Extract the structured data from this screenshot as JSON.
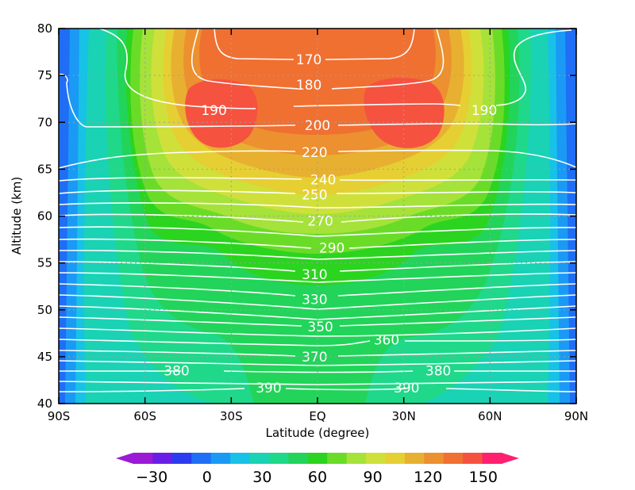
{
  "chart_data": {
    "type": "heatmap",
    "title": "",
    "xlabel": "Latitude (degree)",
    "ylabel": "Altitude (km)",
    "xlim": [
      -90,
      90
    ],
    "ylim": [
      40,
      80
    ],
    "x_ticks": [
      -90,
      -60,
      -30,
      0,
      30,
      60,
      90
    ],
    "x_tick_labels": [
      "90S",
      "60S",
      "30S",
      "EQ",
      "30N",
      "60N",
      "90N"
    ],
    "y_ticks": [
      40,
      45,
      50,
      55,
      60,
      65,
      70,
      75,
      80
    ],
    "y_tick_labels": [
      "40",
      "45",
      "50",
      "55",
      "60",
      "65",
      "70",
      "75",
      "80"
    ],
    "grid": "dotted",
    "shaded_field": {
      "description_levels": "filled contours",
      "colorbar_min": -40,
      "colorbar_max": 160,
      "colorbar_step": 10,
      "colorbar_tick_values": [
        -30,
        0,
        30,
        60,
        90,
        120,
        150
      ],
      "colorbar_tick_labels": [
        "−30",
        "0",
        "30",
        "60",
        "90",
        "120",
        "150"
      ],
      "colormap": [
        "#9b1ad6",
        "#6a1ee6",
        "#2b3cf0",
        "#1f6ef5",
        "#1a9af5",
        "#17c2e6",
        "#1ad2b4",
        "#1fd88a",
        "#22d45a",
        "#2bd41f",
        "#6adc28",
        "#a5e23a",
        "#cfe03a",
        "#e6cf33",
        "#e8b030",
        "#ec9030",
        "#f07032",
        "#f55240",
        "#ff2070"
      ]
    },
    "contour_labels": [
      {
        "value": "170",
        "lat": -3,
        "alt": 76.7
      },
      {
        "value": "180",
        "lat": -3,
        "alt": 74.0
      },
      {
        "value": "190",
        "lat": -36,
        "alt": 71.3
      },
      {
        "value": "190",
        "lat": 58,
        "alt": 71.3
      },
      {
        "value": "200",
        "lat": 0,
        "alt": 69.7
      },
      {
        "value": "220",
        "lat": -1,
        "alt": 66.8
      },
      {
        "value": "240",
        "lat": 2,
        "alt": 63.9
      },
      {
        "value": "250",
        "lat": -1,
        "alt": 62.3
      },
      {
        "value": "270",
        "lat": 1,
        "alt": 59.5
      },
      {
        "value": "290",
        "lat": 5,
        "alt": 56.6
      },
      {
        "value": "310",
        "lat": -1,
        "alt": 53.8
      },
      {
        "value": "330",
        "lat": -1,
        "alt": 51.1
      },
      {
        "value": "350",
        "lat": 1,
        "alt": 48.2
      },
      {
        "value": "360",
        "lat": 24,
        "alt": 46.8
      },
      {
        "value": "370",
        "lat": -1,
        "alt": 45.0
      },
      {
        "value": "380",
        "lat": -49,
        "alt": 43.5
      },
      {
        "value": "380",
        "lat": 42,
        "alt": 43.5
      },
      {
        "value": "390",
        "lat": -17,
        "alt": 41.7
      },
      {
        "value": "390",
        "lat": 31,
        "alt": 41.7
      }
    ]
  }
}
